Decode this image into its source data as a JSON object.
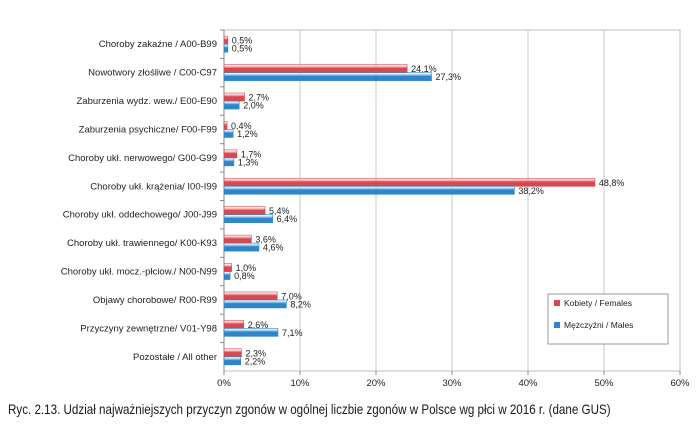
{
  "chart_data": {
    "type": "bar",
    "orientation": "horizontal",
    "categories": [
      "Choroby zakaźne / A00-B99",
      "Nowotwory złośliwe / C00-C97",
      "Zaburzenia wydz. wew./ E00-E90",
      "Zaburzenia psychiczne/ F00-F99",
      "Choroby ukł. nerwowego/ G00-G99",
      "Choroby ukł. krążenia/ I00-I99",
      "Choroby ukł. oddechowego/ J00-J99",
      "Choroby ukł. trawiennego/ K00-K93",
      "Choroby ukł. mocz.-płciow./ N00-N99",
      "Objawy chorobowe/ R00-R99",
      "Przyczyny zewnętrzne/ V01-Y98",
      "Pozostałe / All other"
    ],
    "series": [
      {
        "name": "Kobiety / Females",
        "color": "#d9474f",
        "values": [
          0.5,
          24.1,
          2.7,
          0.4,
          1.7,
          48.8,
          5.4,
          3.6,
          1.0,
          7.0,
          2.6,
          2.3
        ],
        "labels": [
          "0,5%",
          "24,1%",
          "2,7%",
          "0,4%",
          "1,7%",
          "48,8%",
          "5,4%",
          "3,6%",
          "1,0%",
          "7,0%",
          "2,6%",
          "2,3%"
        ]
      },
      {
        "name": "Mężczyźni / Males",
        "color": "#2e86c8",
        "values": [
          0.5,
          27.3,
          2.0,
          1.2,
          1.3,
          38.2,
          6.4,
          4.6,
          0.8,
          8.2,
          7.1,
          2.2
        ],
        "labels": [
          "0,5%",
          "27,3%",
          "2,0%",
          "1,2%",
          "1,3%",
          "38,2%",
          "6,4%",
          "4,6%",
          "0,8%",
          "8,2%",
          "7,1%",
          "2,2%"
        ]
      }
    ],
    "xlim": [
      0,
      60
    ],
    "xticks": [
      0,
      10,
      20,
      30,
      40,
      50,
      60
    ],
    "xtick_labels": [
      "0%",
      "10%",
      "20%",
      "30%",
      "40%",
      "50%",
      "60%"
    ],
    "grid": "vertical",
    "legend_position": "bottom-right"
  },
  "caption": "Ryc. 2.13.    Udział najważniejszych przyczyn zgonów w ogólnej liczbie zgonów w Polsce wg płci w 2016 r. (dane GUS)"
}
